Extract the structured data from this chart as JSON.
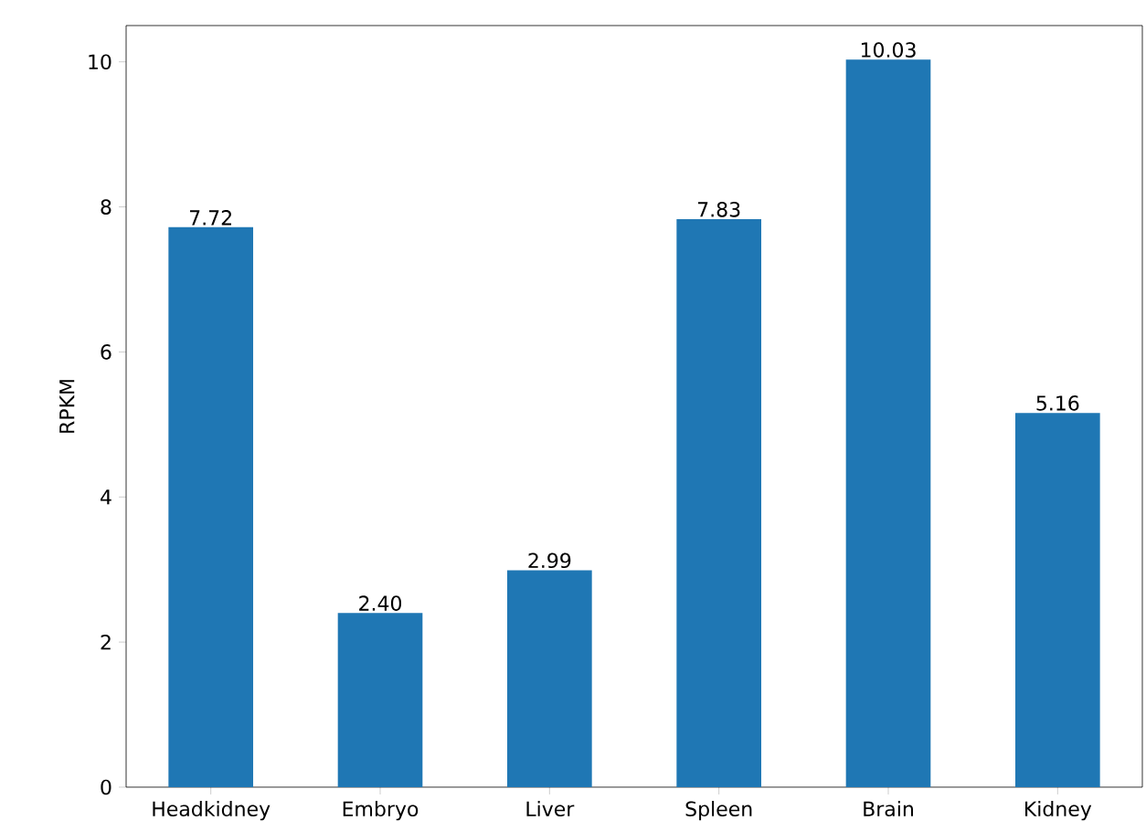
{
  "chart_data": {
    "type": "bar",
    "ylabel": "RPKM",
    "categories": [
      "Headkidney",
      "Embryo",
      "Liver",
      "Spleen",
      "Brain",
      "Kidney"
    ],
    "values": [
      7.72,
      2.4,
      2.99,
      7.83,
      10.03,
      5.16
    ],
    "value_labels": [
      "7.72",
      "2.40",
      "2.99",
      "7.83",
      "10.03",
      "5.16"
    ],
    "color": "#1f77b4",
    "ylim": [
      0,
      10.5
    ],
    "yticks": [
      0,
      2,
      4,
      6,
      8,
      10
    ],
    "grid": false
  }
}
